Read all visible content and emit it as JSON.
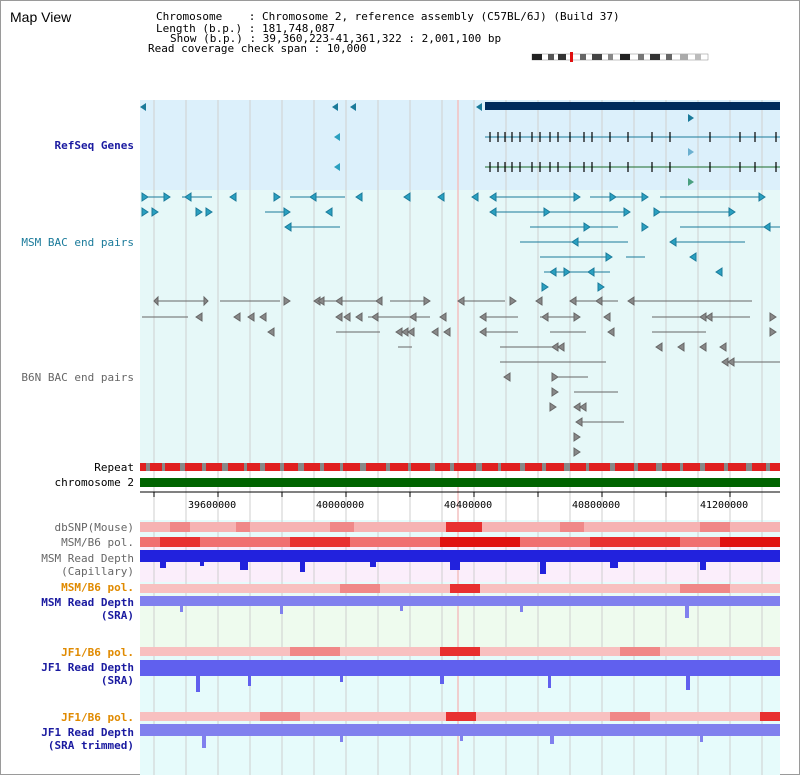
{
  "title": "Map View",
  "header": {
    "chromosome_label": "Chromosome    : ",
    "chromosome_value": "Chromosome 2, reference assembly (C57BL/6J) (Build 37)",
    "length_label": "Length (b.p.) : ",
    "length_value": "181,748,087",
    "show_label": "Show (b.p.) : ",
    "show_value": "39,360,223-41,361,322 : 2,001,100 bp",
    "coverage_label": "Read coverage check span : ",
    "coverage_value": "10,000"
  },
  "tracks": {
    "refseq": "RefSeq Genes",
    "msm_bac": "MSM BAC end pairs",
    "b6n_bac": "B6N BAC end pairs",
    "repeat": "Repeat",
    "chromosome": "chromosome 2",
    "dbsnp": "dbSNP(Mouse)",
    "msm_b6_pol_1": "MSM/B6 pol.",
    "msm_depth_cap_1": "MSM Read Depth",
    "msm_depth_cap_2": "(Capillary)",
    "msm_b6_pol_2": "MSM/B6 pol.",
    "msm_depth_sra_1": "MSM Read Depth",
    "msm_depth_sra_2": "(SRA)",
    "jf1_b6_pol_1": "JF1/B6 pol.",
    "jf1_depth_sra_1": "JF1 Read Depth",
    "jf1_depth_sra_2": "(SRA)",
    "jf1_b6_pol_2": "JF1/B6 pol.",
    "jf1_depth_trim_1": "JF1 Read Depth",
    "jf1_depth_trim_2": "(SRA trimmed)"
  },
  "axis": {
    "ticks": [
      "39600000",
      "40000000",
      "40400000",
      "40800000",
      "41200000"
    ]
  },
  "colors": {
    "refseq_bg": "#dcf0fb",
    "bac_bg": "#e6f8f8",
    "refseq_gene": "#002b5c",
    "msm_bac": "#1a7a9a",
    "b6n_bac": "#666666",
    "chromosome_bar": "#006400",
    "repeat_red": "#e02020",
    "depth_blue": "#2222dd",
    "depth_light": "#8080ee",
    "heat_red": "#ee2020"
  }
}
